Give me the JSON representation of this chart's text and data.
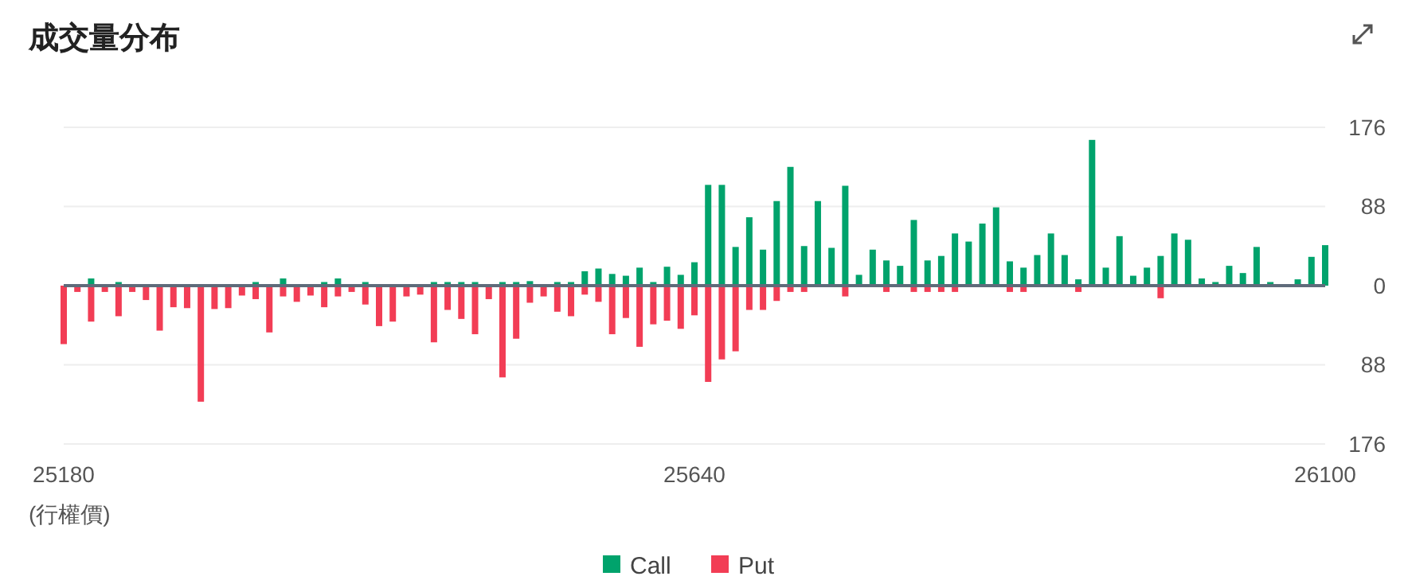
{
  "chart_data": [
    {
      "type": "bar",
      "title": "成交量分布",
      "x": [
        25180,
        25190,
        25200,
        25210,
        25220,
        25230,
        25240,
        25250,
        25260,
        25270,
        25280,
        25290,
        25300,
        25310,
        25320,
        25330,
        25340,
        25350,
        25360,
        25370,
        25380,
        25390,
        25400,
        25410,
        25420,
        25430,
        25440,
        25450,
        25460,
        25470,
        25480,
        25490,
        25500,
        25510,
        25520,
        25530,
        25540,
        25550,
        25560,
        25570,
        25580,
        25590,
        25600,
        25610,
        25620,
        25630,
        25640,
        25650,
        25660,
        25670,
        25680,
        25690,
        25700,
        25710,
        25720,
        25730,
        25740,
        25750,
        25760,
        25770,
        25780,
        25790,
        25800,
        25810,
        25820,
        25830,
        25840,
        25850,
        25860,
        25870,
        25880,
        25890,
        25900,
        25910,
        25920,
        25930,
        25940,
        25950,
        25960,
        25970,
        25980,
        25990,
        26000,
        26010,
        26020,
        26030,
        26040,
        26050,
        26060,
        26070,
        26080,
        26090,
        26100
      ],
      "xlim": [
        25180,
        26100
      ],
      "ylim": [
        0,
        176
      ],
      "yticks": [
        0,
        88,
        176
      ],
      "tick_labels": "y",
      "grid": "y",
      "legend": "bottom",
      "series": [
        {
          "name": "Call",
          "color": "#00a36c",
          "values": [
            0,
            0,
            8,
            0,
            4,
            0,
            0,
            0,
            0,
            0,
            0,
            0,
            0,
            0,
            4,
            0,
            8,
            0,
            0,
            4,
            8,
            0,
            4,
            0,
            0,
            0,
            0,
            4,
            4,
            4,
            4,
            0,
            4,
            4,
            5,
            0,
            4,
            4,
            16,
            19,
            13,
            11,
            20,
            4,
            21,
            12,
            26,
            112,
            112,
            43,
            76,
            40,
            94,
            132,
            44,
            94,
            42,
            111,
            12,
            40,
            28,
            22,
            73,
            28,
            33,
            58,
            49,
            69,
            87,
            27,
            20,
            34,
            58,
            34,
            7,
            162,
            20,
            55,
            11,
            20,
            33,
            58,
            51,
            8,
            4,
            22,
            14,
            43,
            4,
            0,
            7,
            32,
            45
          ]
        }
      ]
    },
    {
      "type": "bar",
      "xlabel": "(行權價)",
      "x": [
        25180,
        25190,
        25200,
        25210,
        25220,
        25230,
        25240,
        25250,
        25260,
        25270,
        25280,
        25290,
        25300,
        25310,
        25320,
        25330,
        25340,
        25350,
        25360,
        25370,
        25380,
        25390,
        25400,
        25410,
        25420,
        25430,
        25440,
        25450,
        25460,
        25470,
        25480,
        25490,
        25500,
        25510,
        25520,
        25530,
        25540,
        25550,
        25560,
        25570,
        25580,
        25590,
        25600,
        25610,
        25620,
        25630,
        25640,
        25650,
        25660,
        25670,
        25680,
        25690,
        25700,
        25710,
        25720,
        25730,
        25740,
        25750,
        25760,
        25770,
        25780,
        25790,
        25800,
        25810,
        25820,
        25830,
        25840,
        25850,
        25860,
        25870,
        25880,
        25890,
        25900,
        25910,
        25920,
        25930,
        25940,
        25950,
        25960,
        25970,
        25980,
        25990,
        26000,
        26010,
        26020,
        26030,
        26040,
        26050,
        26060,
        26070,
        26080,
        26090,
        26100
      ],
      "xlim": [
        25180,
        26100
      ],
      "xticks": [
        25180,
        25640,
        26100
      ],
      "ylim": [
        176,
        0
      ],
      "yticks": [
        88,
        176
      ],
      "grid": "y",
      "legend": "bottom",
      "series": [
        {
          "name": "Put",
          "color": "#f23d55",
          "values": [
            65,
            7,
            40,
            7,
            34,
            7,
            16,
            50,
            24,
            25,
            129,
            26,
            25,
            11,
            15,
            52,
            12,
            18,
            11,
            24,
            12,
            7,
            21,
            45,
            40,
            12,
            10,
            63,
            27,
            37,
            54,
            15,
            102,
            59,
            19,
            12,
            29,
            34,
            10,
            18,
            54,
            36,
            68,
            43,
            39,
            48,
            33,
            107,
            82,
            73,
            27,
            27,
            17,
            7,
            7,
            0,
            0,
            12,
            0,
            0,
            7,
            0,
            7,
            7,
            7,
            7,
            0,
            0,
            0,
            7,
            7,
            0,
            0,
            0,
            7,
            0,
            0,
            0,
            0,
            0,
            14,
            0,
            0,
            0,
            0,
            0,
            0,
            0,
            0,
            0,
            0,
            0,
            0
          ]
        }
      ]
    }
  ]
}
